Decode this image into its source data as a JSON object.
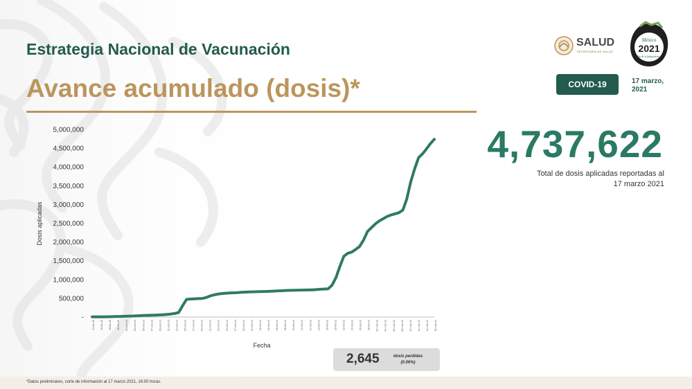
{
  "header": {
    "title": "Estrategia Nacional de Vacunación",
    "subtitle": "Avance acumulado (dosis)*"
  },
  "logos": {
    "salud_name": "SALUD",
    "salud_subtitle": "SECRETARÍA DE SALUD",
    "seal_line1": "México",
    "seal_year": "2021",
    "seal_line2": "Año de la Independencia"
  },
  "badge": {
    "label_prefix": "COVID-",
    "label_suffix": "19",
    "date_line1": "17 marzo,",
    "date_line2": "2021"
  },
  "summary": {
    "total_doses": "4,737,622",
    "caption_line1": "Total de dosis aplicadas reportadas al",
    "caption_line2": "17 marzo 2021"
  },
  "lost": {
    "value": "2,645",
    "label_line1": "dosis perdidas",
    "label_line2": "(0.06%)"
  },
  "footnote": "*Datos preliminares, corte de información al 17 marzo 2021, 16:00 horas.",
  "colors": {
    "title_green": "#235b4e",
    "gold": "#bc955c",
    "line": "#2f7a64",
    "big_number": "#2b7a63"
  },
  "chart_data": {
    "type": "line",
    "xlabel": "Fecha",
    "ylabel": "Dosis aplicadas",
    "ylim": [
      0,
      5000000
    ],
    "yticks": [
      "-",
      "500,000",
      "1,000,000",
      "1,500,000",
      "2,000,000",
      "2,500,000",
      "3,000,000",
      "3,500,000",
      "4,000,000",
      "4,500,000",
      "5,000,000"
    ],
    "xtick_labels": [
      "24-dic-20",
      "26-dic-20",
      "28-dic-20",
      "30-dic-20",
      "01-ene-21",
      "03-ene-21",
      "05-ene-21",
      "07-ene-21",
      "09-ene-21",
      "11-ene-21",
      "13-ene-21",
      "15-ene-21",
      "17-ene-21",
      "19-ene-21",
      "21-ene-21",
      "23-ene-21",
      "25-ene-21",
      "27-ene-21",
      "29-ene-21",
      "31-ene-21",
      "02-feb-21",
      "04-feb-21",
      "06-feb-21",
      "08-feb-21",
      "10-feb-21",
      "12-feb-21",
      "14-feb-21",
      "16-feb-21",
      "18-feb-21",
      "20-feb-21",
      "22-feb-21",
      "24-feb-21",
      "26-feb-21",
      "28-feb-21",
      "02-mar-21",
      "04-mar-21",
      "06-mar-21",
      "08-mar-21",
      "10-mar-21",
      "12-mar-21",
      "14-mar-21",
      "16-mar-21"
    ],
    "values": [
      2900,
      3000,
      4500,
      5200,
      6900,
      9300,
      12000,
      15000,
      19000,
      22000,
      26000,
      30000,
      35000,
      40000,
      44000,
      48000,
      52000,
      56000,
      60000,
      70000,
      80000,
      95000,
      120000,
      300000,
      470000,
      480000,
      485000,
      490000,
      495000,
      520000,
      560000,
      590000,
      610000,
      625000,
      635000,
      640000,
      645000,
      650000,
      660000,
      665000,
      670000,
      672000,
      675000,
      678000,
      680000,
      685000,
      690000,
      695000,
      700000,
      705000,
      710000,
      712000,
      715000,
      718000,
      720000,
      722000,
      725000,
      730000,
      740000,
      745000,
      750000,
      850000,
      1050000,
      1350000,
      1620000,
      1700000,
      1730000,
      1800000,
      1880000,
      2050000,
      2280000,
      2380000,
      2480000,
      2560000,
      2620000,
      2680000,
      2720000,
      2750000,
      2780000,
      2850000,
      3150000,
      3600000,
      3950000,
      4250000,
      4350000,
      4480000,
      4620000,
      4737622
    ]
  }
}
